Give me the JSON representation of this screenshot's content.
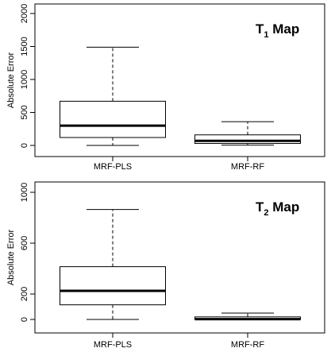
{
  "chart_data": [
    {
      "type": "boxplot",
      "title_main": "T",
      "title_sub": "1",
      "title_rest": " Map",
      "ylabel": "Absolute Error",
      "ylim": [
        0,
        2000
      ],
      "yticks": [
        0,
        500,
        1000,
        1500,
        2000
      ],
      "categories": [
        "MRF-PLS",
        "MRF-RF"
      ],
      "boxes": [
        {
          "whisker_low": 0,
          "q1": 120,
          "median": 300,
          "q3": 670,
          "whisker_high": 1490
        },
        {
          "whisker_low": 5,
          "q1": 30,
          "median": 70,
          "q3": 160,
          "whisker_high": 360
        }
      ]
    },
    {
      "type": "boxplot",
      "title_main": "T",
      "title_sub": "2",
      "title_rest": " Map",
      "ylabel": "Absolute Error",
      "ylim": [
        0,
        1000
      ],
      "yticks": [
        0,
        200,
        600,
        1000
      ],
      "categories": [
        "MRF-PLS",
        "MRF-RF"
      ],
      "boxes": [
        {
          "whisker_low": 0,
          "q1": 115,
          "median": 225,
          "q3": 415,
          "whisker_high": 865
        },
        {
          "whisker_low": 0,
          "q1": 0,
          "median": 2,
          "q3": 20,
          "whisker_high": 50
        }
      ]
    }
  ]
}
